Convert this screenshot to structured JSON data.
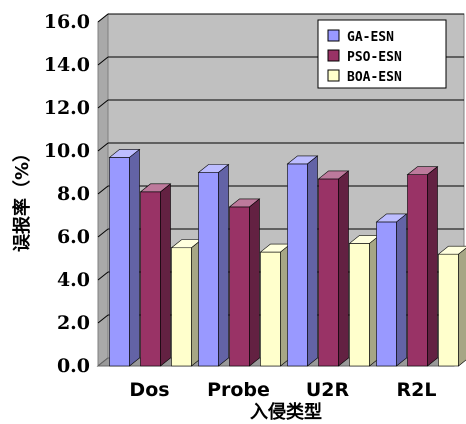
{
  "chart_data": {
    "type": "bar",
    "orientation": "vertical",
    "style": "3d-clustered",
    "title": "",
    "xlabel": "入侵类型",
    "ylabel": "误报率（%）",
    "categories": [
      "Dos",
      "Probe",
      "U2R",
      "R2L"
    ],
    "ylim": [
      0,
      16
    ],
    "yticks": [
      "0.0",
      "2.0",
      "4.0",
      "6.0",
      "8.0",
      "10.0",
      "12.0",
      "14.0",
      "16.0"
    ],
    "grid": true,
    "legend_position": "top-right",
    "series": [
      {
        "name": "GA-ESN",
        "values": [
          9.7,
          9.0,
          9.4,
          6.7
        ],
        "color": "#9999ff"
      },
      {
        "name": "PSO-ESN",
        "values": [
          8.1,
          7.4,
          8.7,
          8.9
        ],
        "color": "#993366"
      },
      {
        "name": "BOA-ESN",
        "values": [
          5.5,
          5.3,
          5.7,
          5.2
        ],
        "color": "#ffffcc"
      }
    ],
    "plot_background": "#c0c0c0"
  }
}
